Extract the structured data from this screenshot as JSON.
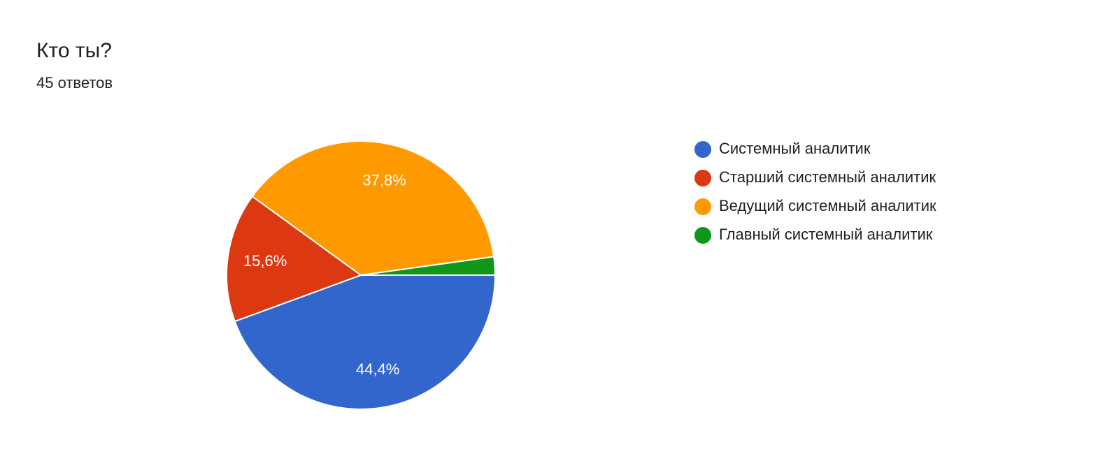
{
  "chart_data": {
    "type": "pie",
    "title": "Кто ты?",
    "subtitle": "45 ответов",
    "categories": [
      "Системный аналитик",
      "Старший системный аналитик",
      "Ведущий системный аналитик",
      "Главный системный аналитик"
    ],
    "values": [
      44.4,
      15.6,
      37.8,
      2.2
    ],
    "value_labels": [
      "44,4%",
      "15,6%",
      "37,8%",
      null
    ],
    "colors": [
      "#3366cc",
      "#dc3912",
      "#ff9900",
      "#109618"
    ]
  }
}
